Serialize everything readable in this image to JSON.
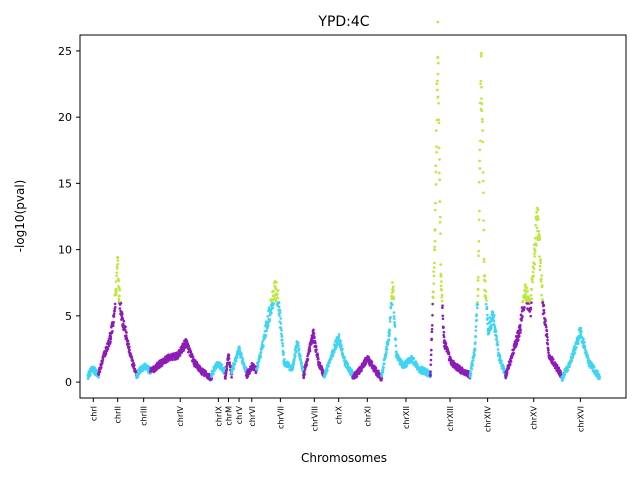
{
  "chart_data": {
    "type": "scatter",
    "title": "YPD:4C",
    "xlabel": "Chromosomes",
    "ylabel": "-log10(pval)",
    "ylim": [
      -1.2,
      26.2
    ],
    "x_range": [
      0,
      100
    ],
    "yticks": [
      0,
      5,
      10,
      15,
      20,
      25
    ],
    "grid": false,
    "legend": "none",
    "threshold": 6,
    "colors": {
      "purple": "#8e1bb8",
      "cyan": "#3fd5f2",
      "lime": "#bbe83a"
    },
    "chromosomes": [
      {
        "name": "chrI",
        "start": 0.0,
        "end": 2.0,
        "color": "cyan",
        "label_x": 1.0
      },
      {
        "name": "chrII",
        "start": 2.0,
        "end": 9.2,
        "color": "purple",
        "label_x": 5.6
      },
      {
        "name": "chrIII",
        "start": 9.2,
        "end": 11.8,
        "color": "cyan",
        "label_x": 10.5
      },
      {
        "name": "chrIV",
        "start": 11.8,
        "end": 23.3,
        "color": "purple",
        "label_x": 17.4
      },
      {
        "name": "chrIX",
        "start": 23.3,
        "end": 25.9,
        "color": "cyan",
        "label_x": 24.6
      },
      {
        "name": "chrM",
        "start": 25.9,
        "end": 27.1,
        "color": "purple",
        "label_x": 26.5
      },
      {
        "name": "chrV",
        "start": 27.1,
        "end": 29.9,
        "color": "cyan",
        "label_x": 28.5
      },
      {
        "name": "chrVI",
        "start": 29.9,
        "end": 31.8,
        "color": "purple",
        "label_x": 30.9
      },
      {
        "name": "chrVII",
        "start": 31.8,
        "end": 40.7,
        "color": "cyan",
        "label_x": 36.3
      },
      {
        "name": "chrVIII",
        "start": 40.7,
        "end": 44.6,
        "color": "purple",
        "label_x": 42.7
      },
      {
        "name": "chrX",
        "start": 44.6,
        "end": 50.0,
        "color": "cyan",
        "label_x": 47.3
      },
      {
        "name": "chrXI",
        "start": 50.0,
        "end": 55.4,
        "color": "purple",
        "label_x": 52.7
      },
      {
        "name": "chrXII",
        "start": 55.4,
        "end": 64.6,
        "color": "cyan",
        "label_x": 60.0
      },
      {
        "name": "chrXIII",
        "start": 64.6,
        "end": 72.1,
        "color": "purple",
        "label_x": 68.3
      },
      {
        "name": "chrXIV",
        "start": 72.1,
        "end": 78.8,
        "color": "cyan",
        "label_x": 75.4
      },
      {
        "name": "chrXV",
        "start": 78.8,
        "end": 89.4,
        "color": "purple",
        "label_x": 84.1
      },
      {
        "name": "chrXVI",
        "start": 89.4,
        "end": 96.5,
        "color": "cyan",
        "label_x": 92.9
      }
    ],
    "series": [
      {
        "chromosome": "chrI",
        "x": [
          0.0,
          0.5,
          1.0,
          1.5,
          2.0
        ],
        "y": [
          0.5,
          0.8,
          1.0,
          0.7,
          0.5
        ]
      },
      {
        "chromosome": "chrII",
        "x": [
          2.0,
          3.0,
          4.0,
          4.8,
          5.3,
          5.6,
          5.9,
          6.5,
          7.2,
          8.0,
          9.2
        ],
        "y": [
          0.6,
          2.0,
          3.0,
          4.5,
          7.0,
          9.4,
          6.5,
          4.8,
          3.5,
          2.0,
          0.5
        ]
      },
      {
        "chromosome": "chrIII",
        "x": [
          9.2,
          10.0,
          10.8,
          11.8
        ],
        "y": [
          0.5,
          1.0,
          1.2,
          0.8
        ]
      },
      {
        "chromosome": "chrIV",
        "x": [
          11.8,
          13.0,
          15.0,
          17.0,
          18.5,
          20.0,
          21.5,
          23.3
        ],
        "y": [
          0.8,
          1.2,
          1.8,
          2.0,
          3.0,
          1.5,
          0.8,
          0.3
        ]
      },
      {
        "chromosome": "chrIX",
        "x": [
          23.3,
          24.5,
          25.9
        ],
        "y": [
          0.6,
          1.4,
          0.8
        ]
      },
      {
        "chromosome": "chrM",
        "x": [
          25.9,
          26.5,
          27.1
        ],
        "y": [
          0.4,
          2.0,
          0.6
        ]
      },
      {
        "chromosome": "chrV",
        "x": [
          27.1,
          28.5,
          29.9
        ],
        "y": [
          0.8,
          2.4,
          0.8
        ]
      },
      {
        "chromosome": "chrVI",
        "x": [
          29.9,
          30.9,
          31.8
        ],
        "y": [
          0.5,
          1.2,
          0.9
        ]
      },
      {
        "chromosome": "chrVII",
        "x": [
          31.8,
          32.8,
          33.8,
          34.6,
          35.3,
          36.0,
          37.0,
          38.5,
          39.5,
          40.7
        ],
        "y": [
          1.0,
          2.5,
          4.5,
          5.8,
          7.2,
          6.0,
          1.5,
          1.0,
          3.0,
          0.5
        ]
      },
      {
        "chromosome": "chrVIII",
        "x": [
          40.7,
          41.8,
          42.5,
          43.5,
          44.6
        ],
        "y": [
          0.5,
          2.5,
          3.6,
          1.5,
          0.5
        ]
      },
      {
        "chromosome": "chrX",
        "x": [
          44.6,
          46.0,
          47.3,
          48.5,
          50.0
        ],
        "y": [
          0.5,
          2.0,
          3.4,
          1.5,
          0.5
        ]
      },
      {
        "chromosome": "chrXI",
        "x": [
          50.0,
          51.5,
          52.7,
          54.0,
          55.4
        ],
        "y": [
          0.3,
          1.0,
          1.8,
          1.0,
          0.3
        ]
      },
      {
        "chromosome": "chrXII",
        "x": [
          55.4,
          56.8,
          57.5,
          58.2,
          59.5,
          61.0,
          62.5,
          64.6
        ],
        "y": [
          0.5,
          3.5,
          7.0,
          2.0,
          1.2,
          1.8,
          1.0,
          0.6
        ]
      },
      {
        "chromosome": "chrXIII",
        "x": [
          64.6,
          65.4,
          66.0,
          66.6,
          67.2,
          68.5,
          70.0,
          72.1
        ],
        "y": [
          0.5,
          10.0,
          24.5,
          8.0,
          3.0,
          1.5,
          1.0,
          0.5
        ]
      },
      {
        "chromosome": "chrXIV",
        "x": [
          72.1,
          73.0,
          73.6,
          74.2,
          74.8,
          75.5,
          76.5,
          77.5,
          78.8
        ],
        "y": [
          0.5,
          2.5,
          7.0,
          24.8,
          8.0,
          4.0,
          5.0,
          2.0,
          0.5
        ]
      },
      {
        "chromosome": "chrXV",
        "x": [
          78.8,
          80.0,
          81.5,
          82.5,
          83.5,
          84.1,
          84.8,
          85.8,
          87.0,
          89.4
        ],
        "y": [
          0.5,
          2.0,
          4.0,
          6.9,
          5.5,
          9.0,
          12.5,
          6.0,
          2.0,
          0.5
        ]
      },
      {
        "chromosome": "chrXVI",
        "x": [
          89.4,
          91.0,
          92.9,
          94.5,
          96.5
        ],
        "y": [
          0.3,
          1.5,
          3.8,
          1.5,
          0.4
        ]
      }
    ]
  }
}
